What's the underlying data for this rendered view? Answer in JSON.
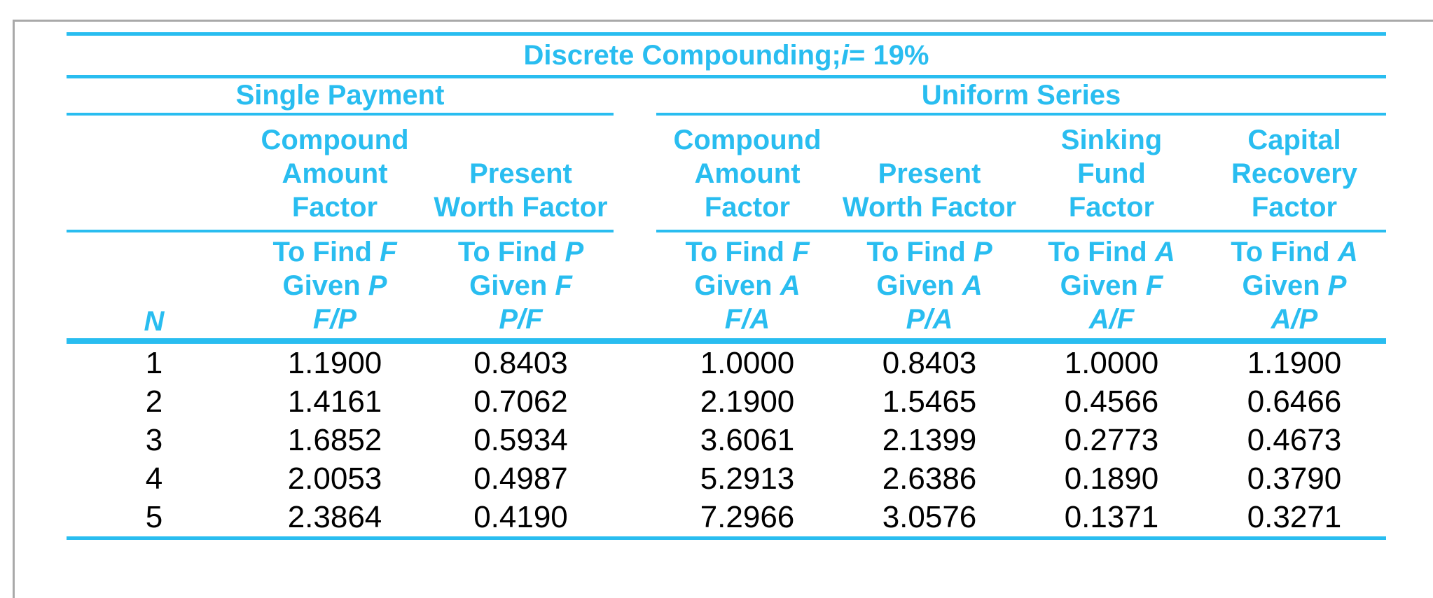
{
  "page": {
    "frame_color": "#a9a9a9",
    "background_color": "#ffffff"
  },
  "table": {
    "accent_color": "#29bdf0",
    "text_color": "#000000",
    "title": {
      "prefix": "Discrete Compounding; ",
      "variable": "i",
      "suffix": " = 19%"
    },
    "groups": [
      {
        "label": "Single Payment"
      },
      {
        "label": "Uniform Series"
      }
    ],
    "labels": {
      "to_find": "To Find",
      "given": "Given",
      "n_column": "N"
    },
    "columns": [
      {
        "group": "Single Payment",
        "header_lines": [
          "Compound",
          "Amount",
          "Factor"
        ],
        "find_var": "F",
        "given_var": "P",
        "ratio": "F/P"
      },
      {
        "group": "Single Payment",
        "header_lines": [
          "Present",
          "Worth Factor"
        ],
        "find_var": "P",
        "given_var": "F",
        "ratio": "P/F"
      },
      {
        "group": "Uniform Series",
        "header_lines": [
          "Compound",
          "Amount",
          "Factor"
        ],
        "find_var": "F",
        "given_var": "A",
        "ratio": "F/A"
      },
      {
        "group": "Uniform Series",
        "header_lines": [
          "Present",
          "Worth Factor"
        ],
        "find_var": "P",
        "given_var": "A",
        "ratio": "P/A"
      },
      {
        "group": "Uniform Series",
        "header_lines": [
          "Sinking",
          "Fund",
          "Factor"
        ],
        "find_var": "A",
        "given_var": "F",
        "ratio": "A/F"
      },
      {
        "group": "Uniform Series",
        "header_lines": [
          "Capital",
          "Recovery",
          "Factor"
        ],
        "find_var": "A",
        "given_var": "P",
        "ratio": "A/P"
      }
    ],
    "rows": [
      {
        "n": "1",
        "values": [
          "1.1900",
          "0.8403",
          "1.0000",
          "0.8403",
          "1.0000",
          "1.1900"
        ]
      },
      {
        "n": "2",
        "values": [
          "1.4161",
          "0.7062",
          "2.1900",
          "1.5465",
          "0.4566",
          "0.6466"
        ]
      },
      {
        "n": "3",
        "values": [
          "1.6852",
          "0.5934",
          "3.6061",
          "2.1399",
          "0.2773",
          "0.4673"
        ]
      },
      {
        "n": "4",
        "values": [
          "2.0053",
          "0.4987",
          "5.2913",
          "2.6386",
          "0.1890",
          "0.3790"
        ]
      },
      {
        "n": "5",
        "values": [
          "2.3864",
          "0.4190",
          "7.2966",
          "3.0576",
          "0.1371",
          "0.3271"
        ]
      }
    ]
  }
}
